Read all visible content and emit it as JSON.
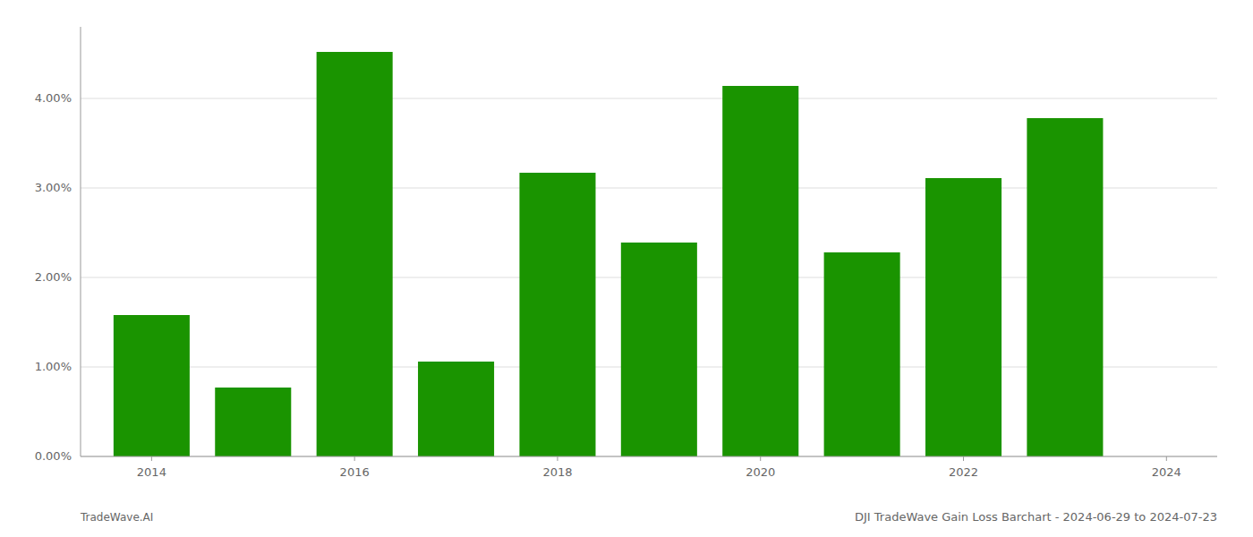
{
  "chart_data": {
    "type": "bar",
    "title": "DJI TradeWave Gain Loss Barchart - 2024-06-29 to 2024-07-23",
    "annotations": [
      "TradeWave.AI"
    ],
    "x": [
      2014,
      2015,
      2016,
      2017,
      2018,
      2019,
      2020,
      2021,
      2022,
      2023
    ],
    "values": [
      1.58,
      0.77,
      4.52,
      1.06,
      3.17,
      2.39,
      4.14,
      2.28,
      3.11,
      3.78
    ],
    "color": "#1a9400",
    "xlim": [
      2013.3,
      2024.5
    ],
    "xticks": [
      2014,
      2016,
      2018,
      2020,
      2022,
      2024
    ],
    "ylim": [
      0.0,
      4.8
    ],
    "yticks": [
      {
        "value": 0.0,
        "label": "0.00%"
      },
      {
        "value": 1.0,
        "label": "1.00%"
      },
      {
        "value": 2.0,
        "label": "2.00%"
      },
      {
        "value": 3.0,
        "label": "3.00%"
      },
      {
        "value": 4.0,
        "label": "4.00%"
      }
    ],
    "grid": true
  }
}
